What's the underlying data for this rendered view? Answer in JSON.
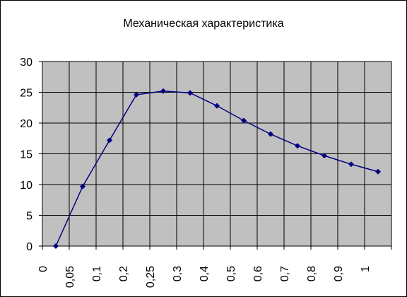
{
  "chart_data": {
    "type": "line",
    "title": "Механическая характеристика",
    "categories": [
      "0",
      "0,05",
      "0,1",
      "0,2",
      "0,25",
      "0,3",
      "0,4",
      "0,5",
      "0,6",
      "0,7",
      "0,8",
      "0,9",
      "1"
    ],
    "values": [
      0,
      9.7,
      17.2,
      24.6,
      25.2,
      24.9,
      22.8,
      20.4,
      18.2,
      16.3,
      14.7,
      13.3,
      12.1
    ],
    "color": "#000080",
    "ylim": [
      0,
      30
    ],
    "yticks": [
      0,
      5,
      10,
      15,
      20,
      25,
      30
    ],
    "grid": true
  }
}
